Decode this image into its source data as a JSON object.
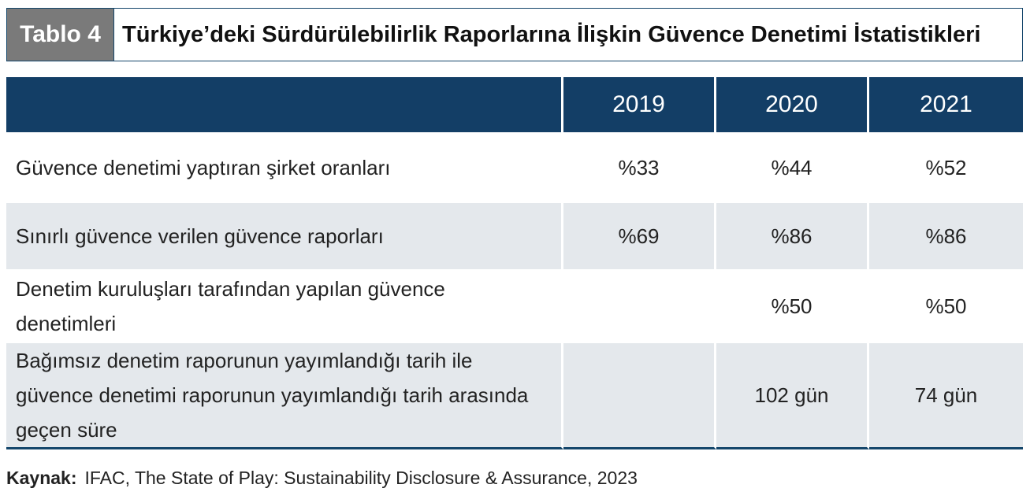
{
  "title": {
    "tag": "Tablo 4",
    "text": "Türkiye’deki Sürdürülebilirlik Raporlarına İlişkin Güvence Denetimi İstatistikleri"
  },
  "table": {
    "columns": [
      "",
      "2019",
      "2020",
      "2021"
    ],
    "rows": [
      {
        "label": "Güvence denetimi yaptıran şirket oranları",
        "v2019": "%33",
        "v2020": "%44",
        "v2021": "%52"
      },
      {
        "label": "Sınırlı güvence verilen güvence raporları",
        "v2019": "%69",
        "v2020": "%86",
        "v2021": "%86"
      },
      {
        "label": "Denetim kuruluşları tarafından yapılan güvence denetimleri",
        "v2019": "",
        "v2020": "%50",
        "v2021": "%50"
      },
      {
        "label": "Bağımsız denetim raporunun yayımlandığı tarih ile güvence denetimi raporunun yayımlandığı tarih arasında geçen süre",
        "v2019": "",
        "v2020": "102 gün",
        "v2021": "74 gün"
      }
    ]
  },
  "source": {
    "label": "Kaynak:",
    "text": "IFAC, The State of Play: Sustainability Disclosure & Assurance,  2023"
  },
  "colors": {
    "header": "#133e66",
    "shade": "#e4e8ec",
    "tag": "#7a7a7a"
  }
}
